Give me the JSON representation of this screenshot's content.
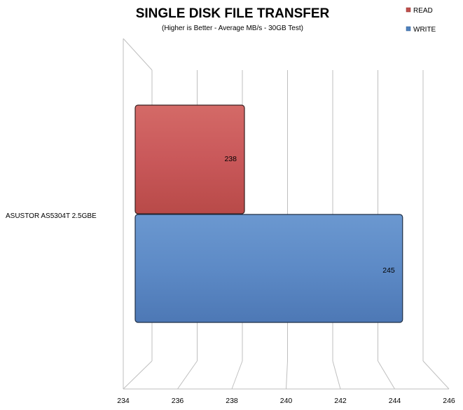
{
  "chart_data": {
    "type": "bar",
    "orientation": "horizontal",
    "title": "SINGLE DISK FILE TRANSFER",
    "subtitle": "(Higher is Better - Average MB/s - 30GB Test)",
    "categories": [
      "ASUSTOR AS5304T 2.5GBE"
    ],
    "series": [
      {
        "name": "READ",
        "values": [
          238
        ],
        "color": "#C0504D"
      },
      {
        "name": "WRITE",
        "values": [
          245
        ],
        "color": "#4F81BD"
      }
    ],
    "xlim": [
      234,
      246
    ],
    "xticks": [
      "234",
      "236",
      "238",
      "240",
      "242",
      "244",
      "246"
    ],
    "data_labels": [
      "238",
      "245"
    ],
    "grid": true,
    "legend_position": "top-right",
    "style": "3d"
  }
}
